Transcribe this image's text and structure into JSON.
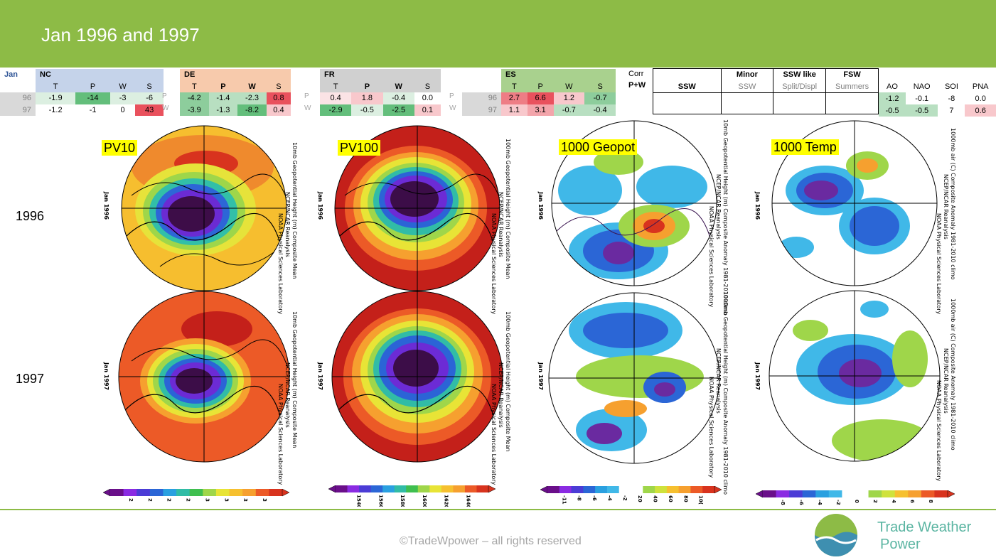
{
  "header": {
    "title": "Jan 1996 and 1997"
  },
  "stats": {
    "jan_label": "Jan",
    "groups": [
      {
        "name": "NC",
        "cols": [
          "T",
          "P",
          "W",
          "S"
        ],
        "rows": [
          {
            "year": "96",
            "vals": [
              "-1.9",
              "-14",
              "-3",
              "-6"
            ]
          },
          {
            "year": "97",
            "vals": [
              "-1.2",
              "-1",
              "0",
              "43"
            ]
          }
        ]
      },
      {
        "name": "DE",
        "cols": [
          "T",
          "P",
          "W",
          "S"
        ],
        "rows": [
          {
            "vals": [
              "-4.2",
              "-1.4",
              "-2.3",
              "0.8"
            ]
          },
          {
            "vals": [
              "-3.9",
              "-1.3",
              "-8.2",
              "0.4"
            ]
          }
        ]
      },
      {
        "name": "FR",
        "cols": [
          "T",
          "P",
          "W",
          "S"
        ],
        "rows": [
          {
            "vals": [
              "0.4",
              "1.8",
              "-0.4",
              "0.0"
            ]
          },
          {
            "vals": [
              "-2.9",
              "-0.5",
              "-2.5",
              "0.1"
            ]
          }
        ]
      },
      {
        "name": "ES",
        "cols": [
          "T",
          "P",
          "W",
          "S"
        ],
        "rows": [
          {
            "year": "96",
            "vals": [
              "2.7",
              "6.6",
              "1.2",
              "-0.7"
            ]
          },
          {
            "year": "97",
            "vals": [
              "1.1",
              "3.1",
              "-0.7",
              "-0.4"
            ]
          }
        ]
      }
    ],
    "row_markers": [
      "P",
      "W"
    ],
    "corr": "Corr",
    "pw": "P+W",
    "ssw": {
      "ssw": "SSW",
      "minor": "Minor",
      "minor_sub": "SSW",
      "sswlike": "SSW like",
      "sswlike_sub": "Split/Displ",
      "fsw": "FSW",
      "fsw_sub": "Summers"
    },
    "indices": {
      "cols": [
        "AO",
        "NAO",
        "SOI",
        "PNA"
      ],
      "rows": [
        [
          "-1.2",
          "-0.1",
          "-8",
          "0.0"
        ],
        [
          "-0.5",
          "-0.5",
          "7",
          "0.6"
        ]
      ]
    }
  },
  "years": [
    "1996",
    "1997"
  ],
  "maps": {
    "tags": [
      "PV10",
      "PV100",
      "1000 Geopot",
      "1000 Temp"
    ],
    "captions": {
      "pv10_top": "10mb Geopotential Height (m) Composite Mean",
      "pv100_top": "100mb Geopotential Height (m) Composite Mean",
      "geo_top": "10mb Geopotential Height (m) Composite Anomaly 1981-2010 climo",
      "geo_bottom": "1000mb Geopotential Height (m) Composite Anomaly 1981-2010 climo",
      "temp": "1000mb air (C) Composite Anomaly 1981-2010 climo",
      "source": "NCEP/NCAR Reanalysis",
      "lab": "NOAA Physical Sciences Laboratory",
      "date_96": "Jan 1996",
      "date_97": "Jan 1997"
    },
    "scales": {
      "pv10": [
        "2",
        "2",
        "2",
        "2",
        "3",
        "3",
        "3",
        "3"
      ],
      "pv100": [
        "1540",
        "1560",
        "1580",
        "1600",
        "1620",
        "1640"
      ],
      "geo": [
        "-11",
        "-8",
        "-6",
        "-4",
        "-2",
        "20",
        "40",
        "60",
        "80",
        "10("
      ],
      "temp": [
        "-8",
        "-6",
        "-4",
        "-2",
        "0",
        "2",
        "4",
        "6",
        "8"
      ]
    }
  },
  "footer": {
    "copyright": "©TradeWpower – all rights reserved",
    "brand_line1": "Trade Weather",
    "brand_line2": "Power"
  },
  "colors": {
    "header": "#8dbb46",
    "brand": "#5bb5a2"
  }
}
